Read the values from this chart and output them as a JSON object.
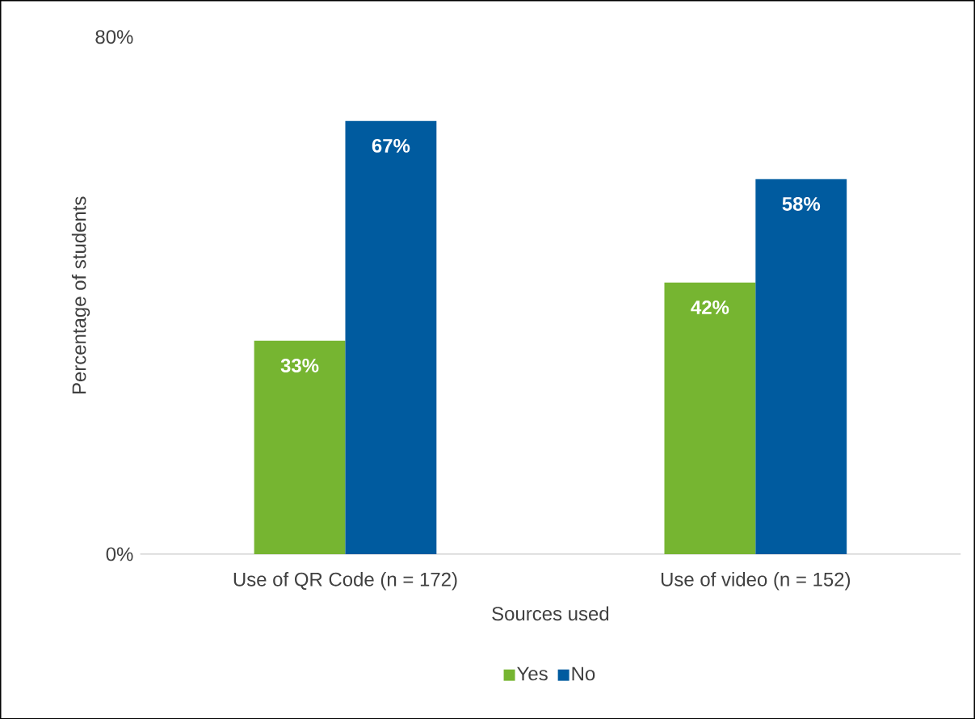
{
  "chart_data": {
    "type": "bar",
    "xlabel": "Sources used",
    "ylabel": "Percentage of students",
    "categories": [
      "Use of QR Code (n = 172)",
      "Use of video (n = 152)"
    ],
    "series": [
      {
        "name": "Yes",
        "color": "#76b531",
        "values": [
          33,
          42
        ],
        "value_labels": [
          "33%",
          "42%"
        ]
      },
      {
        "name": "No",
        "color": "#005b9f",
        "values": [
          67,
          58
        ],
        "value_labels": [
          "67%",
          "58%"
        ]
      }
    ],
    "ylim": [
      0,
      80
    ],
    "yticks": [
      {
        "value": 0,
        "label": "0%"
      },
      {
        "value": 80,
        "label": "80%"
      }
    ],
    "legend": "bottom"
  }
}
